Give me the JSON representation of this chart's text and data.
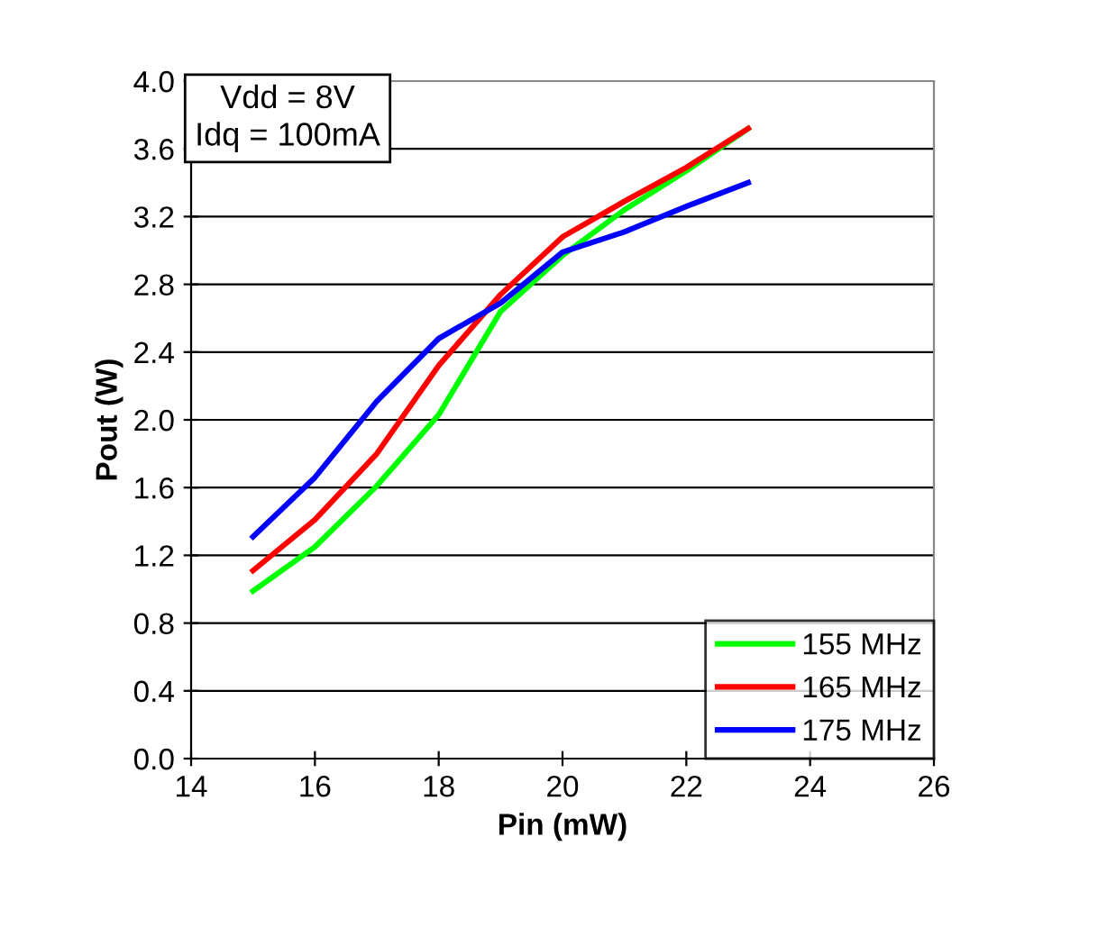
{
  "chart_data": {
    "type": "line",
    "xlabel": "Pin (mW)",
    "ylabel": "Pout (W)",
    "annotations": [
      "Vdd = 8V\nIdq = 100mA"
    ],
    "xlim": [
      14,
      26
    ],
    "xticks": [
      14,
      16,
      18,
      20,
      22,
      24,
      26
    ],
    "ylim": [
      0,
      4
    ],
    "yticks": [
      {
        "value": 0,
        "label": "0.0"
      },
      {
        "value": 0.4,
        "label": "0.4"
      },
      {
        "value": 0.8,
        "label": "0.8"
      },
      {
        "value": 1.2,
        "label": "1.2"
      },
      {
        "value": 1.6,
        "label": "1.6"
      },
      {
        "value": 2.0,
        "label": "2.0"
      },
      {
        "value": 2.4,
        "label": "2.4"
      },
      {
        "value": 2.8,
        "label": "2.8"
      },
      {
        "value": 3.2,
        "label": "3.2"
      },
      {
        "value": 3.6,
        "label": "3.6"
      },
      {
        "value": 4.0,
        "label": "4.0"
      }
    ],
    "grid": "y",
    "legend": "bottom right",
    "marker": "none",
    "line_style": "solid",
    "x": [
      15,
      16,
      17,
      18,
      19,
      20,
      21,
      22,
      23
    ],
    "series": [
      {
        "name": "155 MHz",
        "color": "#00ff00",
        "values": [
          0.99,
          1.25,
          1.61,
          2.03,
          2.64,
          2.97,
          3.24,
          3.47,
          3.72
        ]
      },
      {
        "name": "165 MHz",
        "color": "#ff0000",
        "values": [
          1.11,
          1.41,
          1.8,
          2.32,
          2.74,
          3.08,
          3.29,
          3.49,
          3.72
        ]
      },
      {
        "name": "175 MHz",
        "color": "#0000ff",
        "values": [
          1.31,
          1.66,
          2.11,
          2.48,
          2.69,
          2.99,
          3.11,
          3.26,
          3.4
        ]
      }
    ]
  }
}
